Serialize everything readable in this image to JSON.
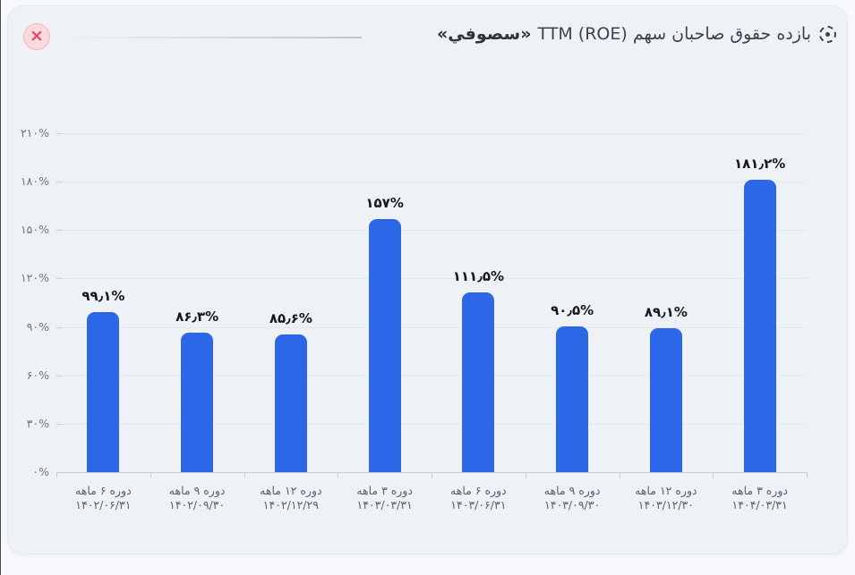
{
  "header": {
    "title_main": "بازده حقوق صاحبان سهم TTM (ROE)",
    "title_symbol": "«سصوفي»",
    "close_icon": "×"
  },
  "colors": {
    "bar": "#2c67e8",
    "page_bg": "#f7f9fc",
    "card_bg": "#eef1f6",
    "gridline": "#e3e7ee",
    "axis": "#c7ccd5",
    "value_label_text": "#17191d",
    "axis_label_text": "#6d7580",
    "title_text": "#3e444c",
    "close_bg": "#fadade",
    "close_border": "#f1b7c1",
    "close_x": "#e5445f"
  },
  "chart_data": {
    "type": "bar",
    "title": "بازده حقوق صاحبان سهم TTM (ROE) «سصوفي»",
    "xlabel": "",
    "ylabel": "",
    "ylim": [
      0,
      210
    ],
    "y_ticks": [
      0,
      30,
      60,
      90,
      120,
      150,
      180,
      210
    ],
    "y_tick_labels": [
      "۰%",
      "۳۰%",
      "۶۰%",
      "۹۰%",
      "۱۲۰%",
      "۱۵۰%",
      "۱۸۰%",
      "۲۱۰%"
    ],
    "grid": true,
    "legend": "none",
    "bar_color": "#2c67e8",
    "categories": [
      {
        "period": "دوره ۶ ماهه",
        "date": "۱۴۰۲/۰۶/۳۱"
      },
      {
        "period": "دوره ۹ ماهه",
        "date": "۱۴۰۲/۰۹/۳۰"
      },
      {
        "period": "دوره ۱۲ ماهه",
        "date": "۱۴۰۲/۱۲/۲۹"
      },
      {
        "period": "دوره ۳ ماهه",
        "date": "۱۴۰۳/۰۳/۳۱"
      },
      {
        "period": "دوره ۶ ماهه",
        "date": "۱۴۰۳/۰۶/۳۱"
      },
      {
        "period": "دوره ۹ ماهه",
        "date": "۱۴۰۳/۰۹/۳۰"
      },
      {
        "period": "دوره ۱۲ ماهه",
        "date": "۱۴۰۳/۱۲/۳۰"
      },
      {
        "period": "دوره ۳ ماهه",
        "date": "۱۴۰۴/۰۳/۳۱"
      }
    ],
    "values": [
      99.1,
      86.3,
      85.6,
      157,
      111.5,
      90.5,
      89.1,
      181.2
    ],
    "value_labels": [
      "۹۹٫۱%",
      "۸۶٫۳%",
      "۸۵٫۶%",
      "۱۵۷%",
      "۱۱۱٫۵%",
      "۹۰٫۵%",
      "۸۹٫۱%",
      "۱۸۱٫۲%"
    ]
  }
}
